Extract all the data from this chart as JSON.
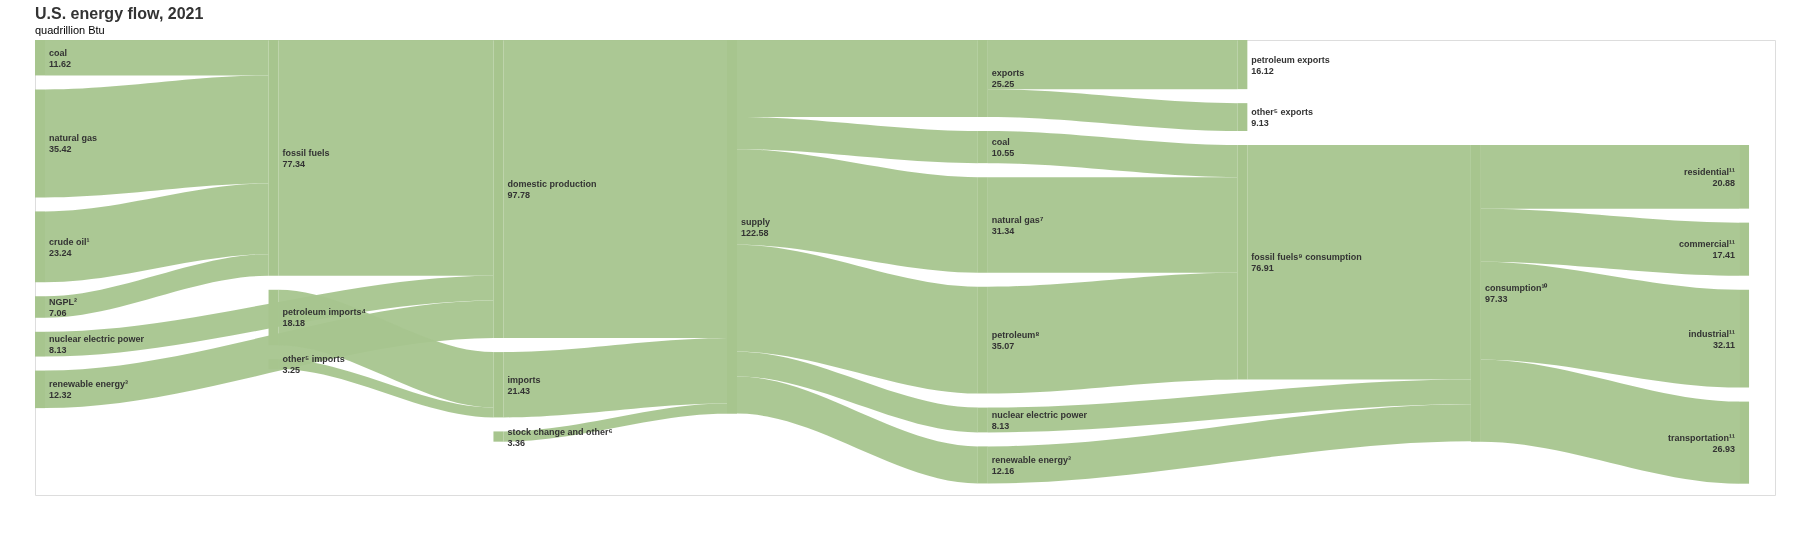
{
  "chart_data": {
    "type": "other",
    "title": "U.S. energy flow, 2021",
    "subtitle": "quadrillion Btu",
    "color": "#a7c58e",
    "data_labels": true,
    "categories": [
      "coal",
      "natural gas",
      "crude oil¹",
      "NGPL²",
      "nuclear electric power",
      "renewable energy³",
      "fossil fuels",
      "petroleum imports⁴",
      "other⁵ imports",
      "domestic production",
      "imports",
      "stock change and other⁶",
      "supply",
      "exports",
      "coal",
      "natural gas⁷",
      "petroleum⁸",
      "nuclear electric power",
      "renewable energy³",
      "petroleum exports",
      "other⁵ exports",
      "fossil fuels⁹ consumption",
      "consumption¹⁰",
      "residential¹¹",
      "commercial¹¹",
      "industrial¹¹",
      "transportation¹¹"
    ],
    "values": [
      11.62,
      35.42,
      23.24,
      7.06,
      8.13,
      12.32,
      77.34,
      18.18,
      3.25,
      97.78,
      21.43,
      3.36,
      122.58,
      25.25,
      10.55,
      31.34,
      35.07,
      8.13,
      12.16,
      16.12,
      9.13,
      76.91,
      97.33,
      20.88,
      17.41,
      32.11,
      26.93
    ]
  }
}
